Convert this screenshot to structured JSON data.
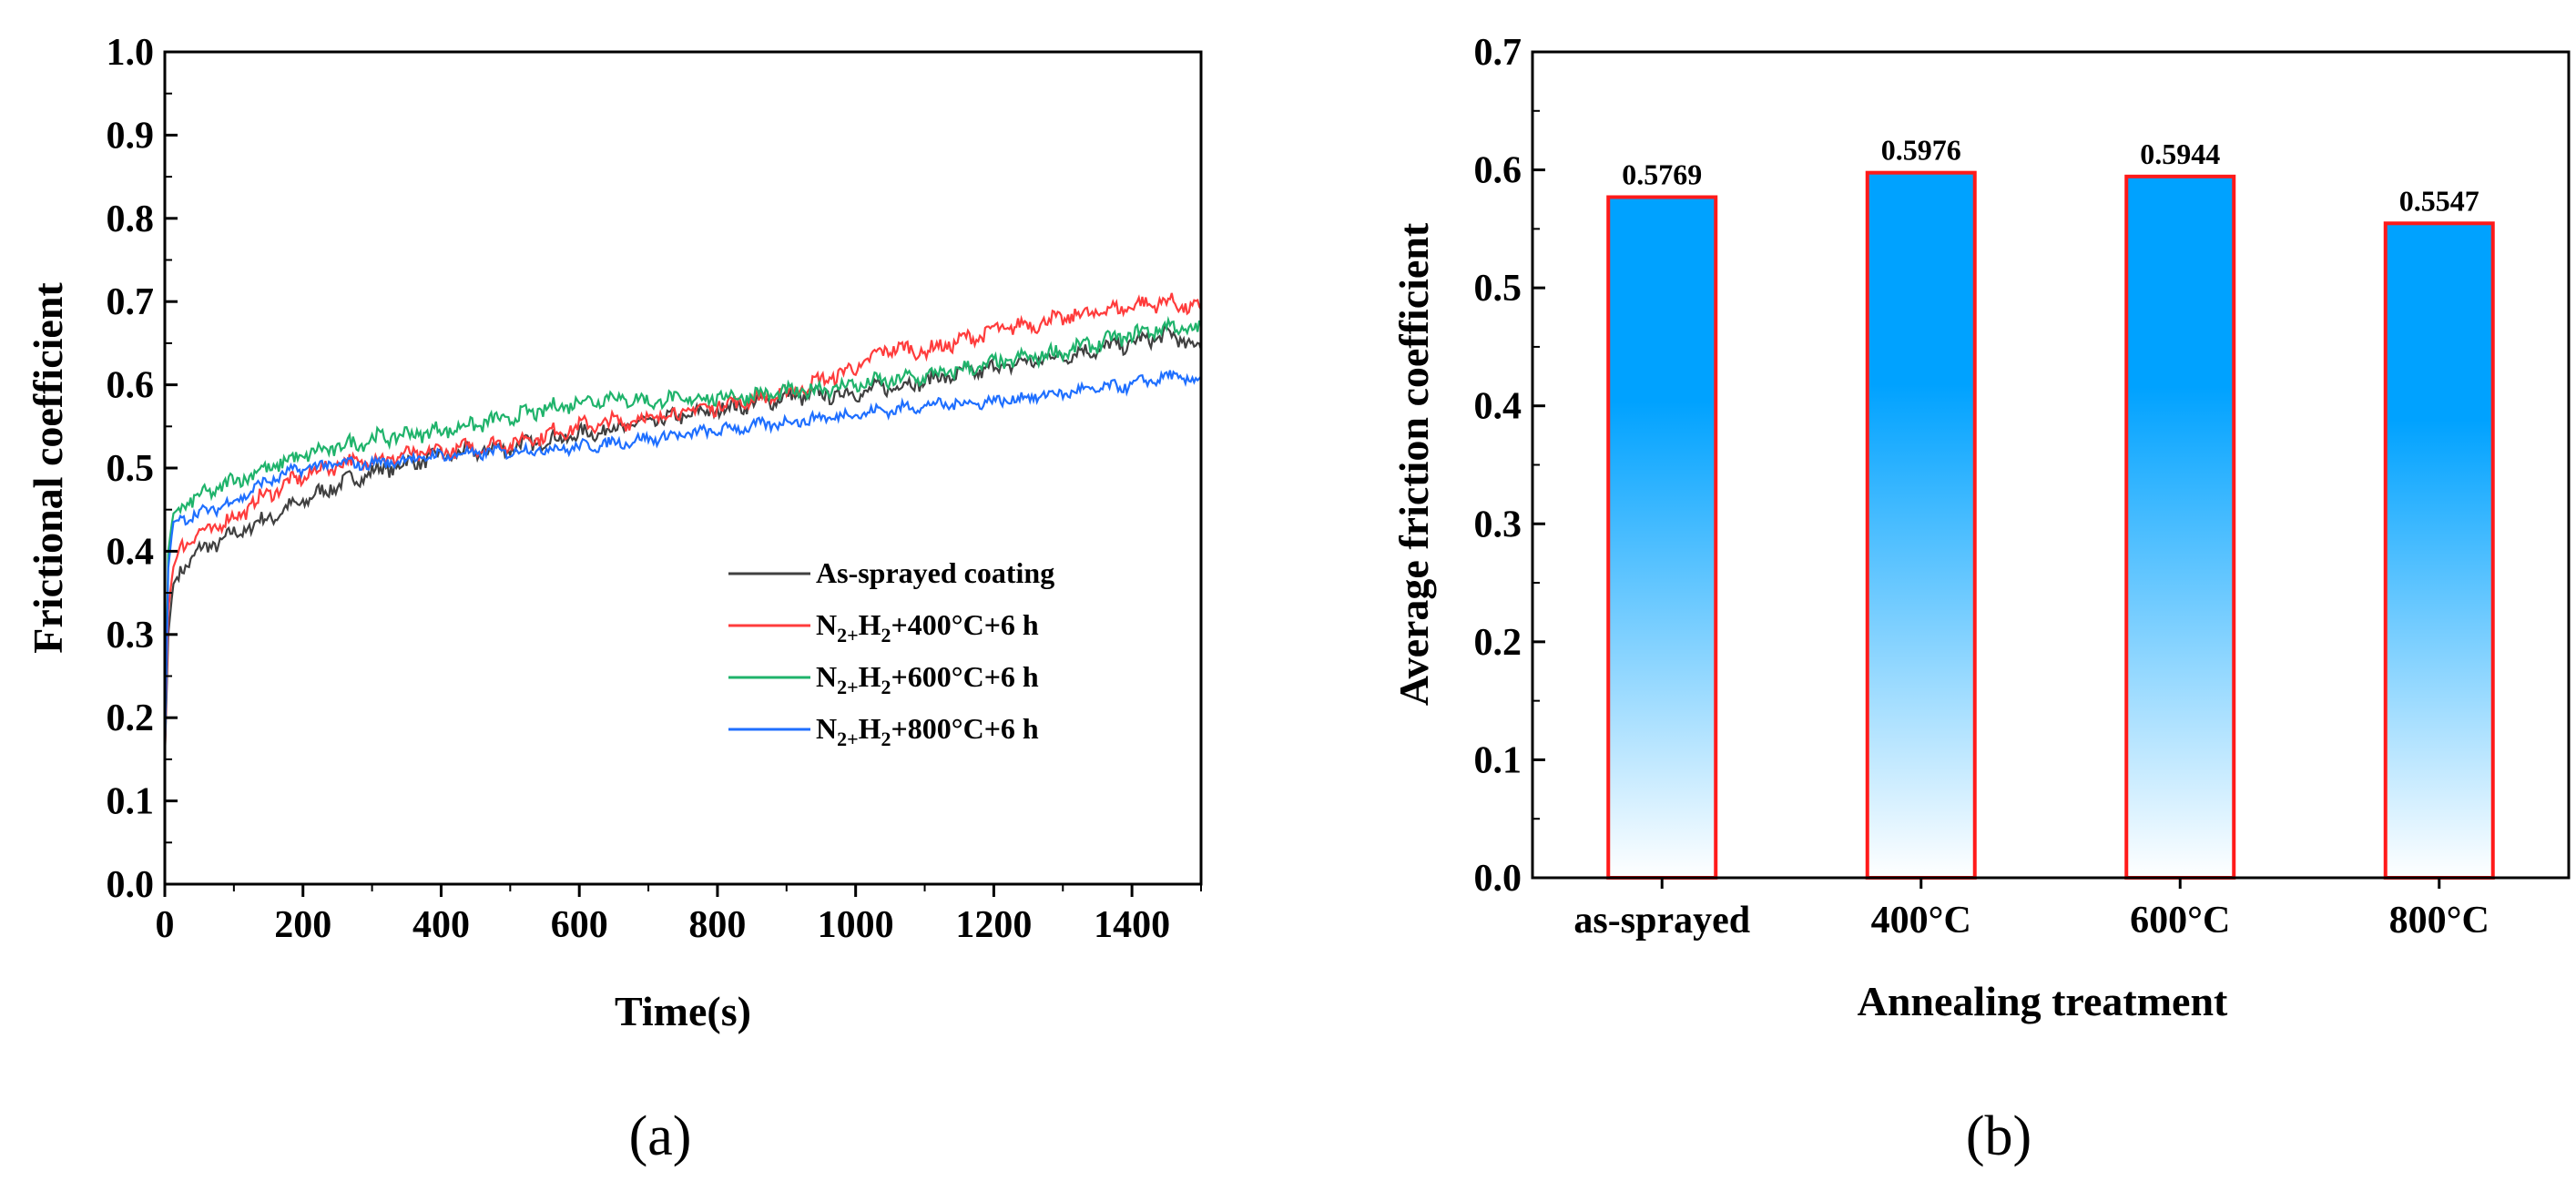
{
  "panels": [
    {
      "label": "(a)"
    },
    {
      "label": "(b)"
    }
  ],
  "chart_data": [
    {
      "type": "line",
      "panel": "(a)",
      "xlabel": "Time(s)",
      "ylabel": "Frictional coefficient",
      "xlim": [
        0,
        1500
      ],
      "ylim": [
        0.0,
        1.0
      ],
      "xticks": [
        0,
        200,
        400,
        600,
        800,
        1000,
        1200,
        1400
      ],
      "yticks": [
        0.0,
        0.1,
        0.2,
        0.3,
        0.4,
        0.5,
        0.6,
        0.7,
        0.8,
        0.9,
        1.0
      ],
      "ytick_labels": [
        "0.0",
        "0.1",
        "0.2",
        "0.3",
        "0.4",
        "0.5",
        "0.6",
        "0.7",
        "0.8",
        "0.9",
        "1.0"
      ],
      "legend_position": "lower-right",
      "series": [
        {
          "name": "As-sprayed coating",
          "legend": {
            "p1": "As-sprayed coating"
          },
          "color": "#404040",
          "noise": 0.008,
          "points": [
            [
              0,
              0.15
            ],
            [
              5,
              0.3
            ],
            [
              12,
              0.36
            ],
            [
              25,
              0.38
            ],
            [
              50,
              0.4
            ],
            [
              100,
              0.42
            ],
            [
              150,
              0.44
            ],
            [
              200,
              0.46
            ],
            [
              250,
              0.48
            ],
            [
              300,
              0.495
            ],
            [
              350,
              0.505
            ],
            [
              400,
              0.515
            ],
            [
              500,
              0.525
            ],
            [
              600,
              0.54
            ],
            [
              700,
              0.555
            ],
            [
              800,
              0.57
            ],
            [
              900,
              0.585
            ],
            [
              1000,
              0.59
            ],
            [
              1100,
              0.605
            ],
            [
              1200,
              0.62
            ],
            [
              1300,
              0.635
            ],
            [
              1400,
              0.65
            ],
            [
              1450,
              0.66
            ],
            [
              1500,
              0.645
            ]
          ]
        },
        {
          "name": "N2+H2+400°C+6 h",
          "legend": {
            "p1": "N",
            "s1": "2+",
            "p2": "H",
            "s2": "2",
            "p3": "+400°C+6 h"
          },
          "color": "#ff3c3c",
          "noise": 0.008,
          "points": [
            [
              0,
              0.15
            ],
            [
              5,
              0.33
            ],
            [
              12,
              0.38
            ],
            [
              25,
              0.41
            ],
            [
              50,
              0.42
            ],
            [
              100,
              0.44
            ],
            [
              150,
              0.47
            ],
            [
              200,
              0.49
            ],
            [
              250,
              0.505
            ],
            [
              300,
              0.51
            ],
            [
              400,
              0.52
            ],
            [
              500,
              0.53
            ],
            [
              600,
              0.55
            ],
            [
              700,
              0.56
            ],
            [
              800,
              0.575
            ],
            [
              900,
              0.59
            ],
            [
              1000,
              0.62
            ],
            [
              1050,
              0.645
            ],
            [
              1100,
              0.64
            ],
            [
              1200,
              0.665
            ],
            [
              1300,
              0.68
            ],
            [
              1400,
              0.695
            ],
            [
              1450,
              0.7
            ],
            [
              1500,
              0.69
            ]
          ]
        },
        {
          "name": "N2+H2+600°C+6 h",
          "legend": {
            "p1": "N",
            "s1": "2+",
            "p2": "H",
            "s2": "2",
            "p3": "+600°C+6 h"
          },
          "color": "#1fb36b",
          "noise": 0.008,
          "points": [
            [
              0,
              0.15
            ],
            [
              5,
              0.4
            ],
            [
              12,
              0.445
            ],
            [
              25,
              0.455
            ],
            [
              50,
              0.465
            ],
            [
              100,
              0.485
            ],
            [
              150,
              0.5
            ],
            [
              200,
              0.515
            ],
            [
              250,
              0.525
            ],
            [
              300,
              0.535
            ],
            [
              400,
              0.545
            ],
            [
              500,
              0.56
            ],
            [
              600,
              0.58
            ],
            [
              650,
              0.585
            ],
            [
              700,
              0.58
            ],
            [
              800,
              0.585
            ],
            [
              900,
              0.59
            ],
            [
              1000,
              0.6
            ],
            [
              1100,
              0.61
            ],
            [
              1200,
              0.625
            ],
            [
              1300,
              0.64
            ],
            [
              1400,
              0.66
            ],
            [
              1450,
              0.67
            ],
            [
              1500,
              0.665
            ]
          ]
        },
        {
          "name": "N2+H2+800°C+6 h",
          "legend": {
            "p1": "N",
            "s1": "2+",
            "p2": "H",
            "s2": "2",
            "p3": "+800°C+6 h"
          },
          "color": "#1f6fff",
          "noise": 0.006,
          "points": [
            [
              0,
              0.15
            ],
            [
              5,
              0.38
            ],
            [
              12,
              0.435
            ],
            [
              25,
              0.44
            ],
            [
              50,
              0.445
            ],
            [
              100,
              0.46
            ],
            [
              150,
              0.485
            ],
            [
              200,
              0.5
            ],
            [
              250,
              0.505
            ],
            [
              300,
              0.505
            ],
            [
              400,
              0.515
            ],
            [
              500,
              0.52
            ],
            [
              600,
              0.525
            ],
            [
              700,
              0.535
            ],
            [
              800,
              0.545
            ],
            [
              900,
              0.555
            ],
            [
              1000,
              0.565
            ],
            [
              1100,
              0.575
            ],
            [
              1200,
              0.58
            ],
            [
              1300,
              0.59
            ],
            [
              1400,
              0.6
            ],
            [
              1450,
              0.61
            ],
            [
              1500,
              0.605
            ]
          ]
        }
      ]
    },
    {
      "type": "bar",
      "panel": "(b)",
      "xlabel": "Annealing treatment",
      "ylabel": "Average friction coefficient",
      "ylim": [
        0.0,
        0.7
      ],
      "yticks": [
        0.0,
        0.1,
        0.2,
        0.3,
        0.4,
        0.5,
        0.6,
        0.7
      ],
      "ytick_labels": [
        "0.0",
        "0.1",
        "0.2",
        "0.3",
        "0.4",
        "0.5",
        "0.6",
        "0.7"
      ],
      "categories": [
        "as-sprayed",
        "400°C",
        "600°C",
        "800°C"
      ],
      "values": [
        0.5769,
        0.5976,
        0.5944,
        0.5547
      ],
      "value_labels": [
        "0.5769",
        "0.5976",
        "0.5944",
        "0.5547"
      ],
      "bar_fill_top": "#00a2ff",
      "bar_fill_bottom": "#ffffff",
      "bar_edge": "#ff1a1a"
    }
  ]
}
